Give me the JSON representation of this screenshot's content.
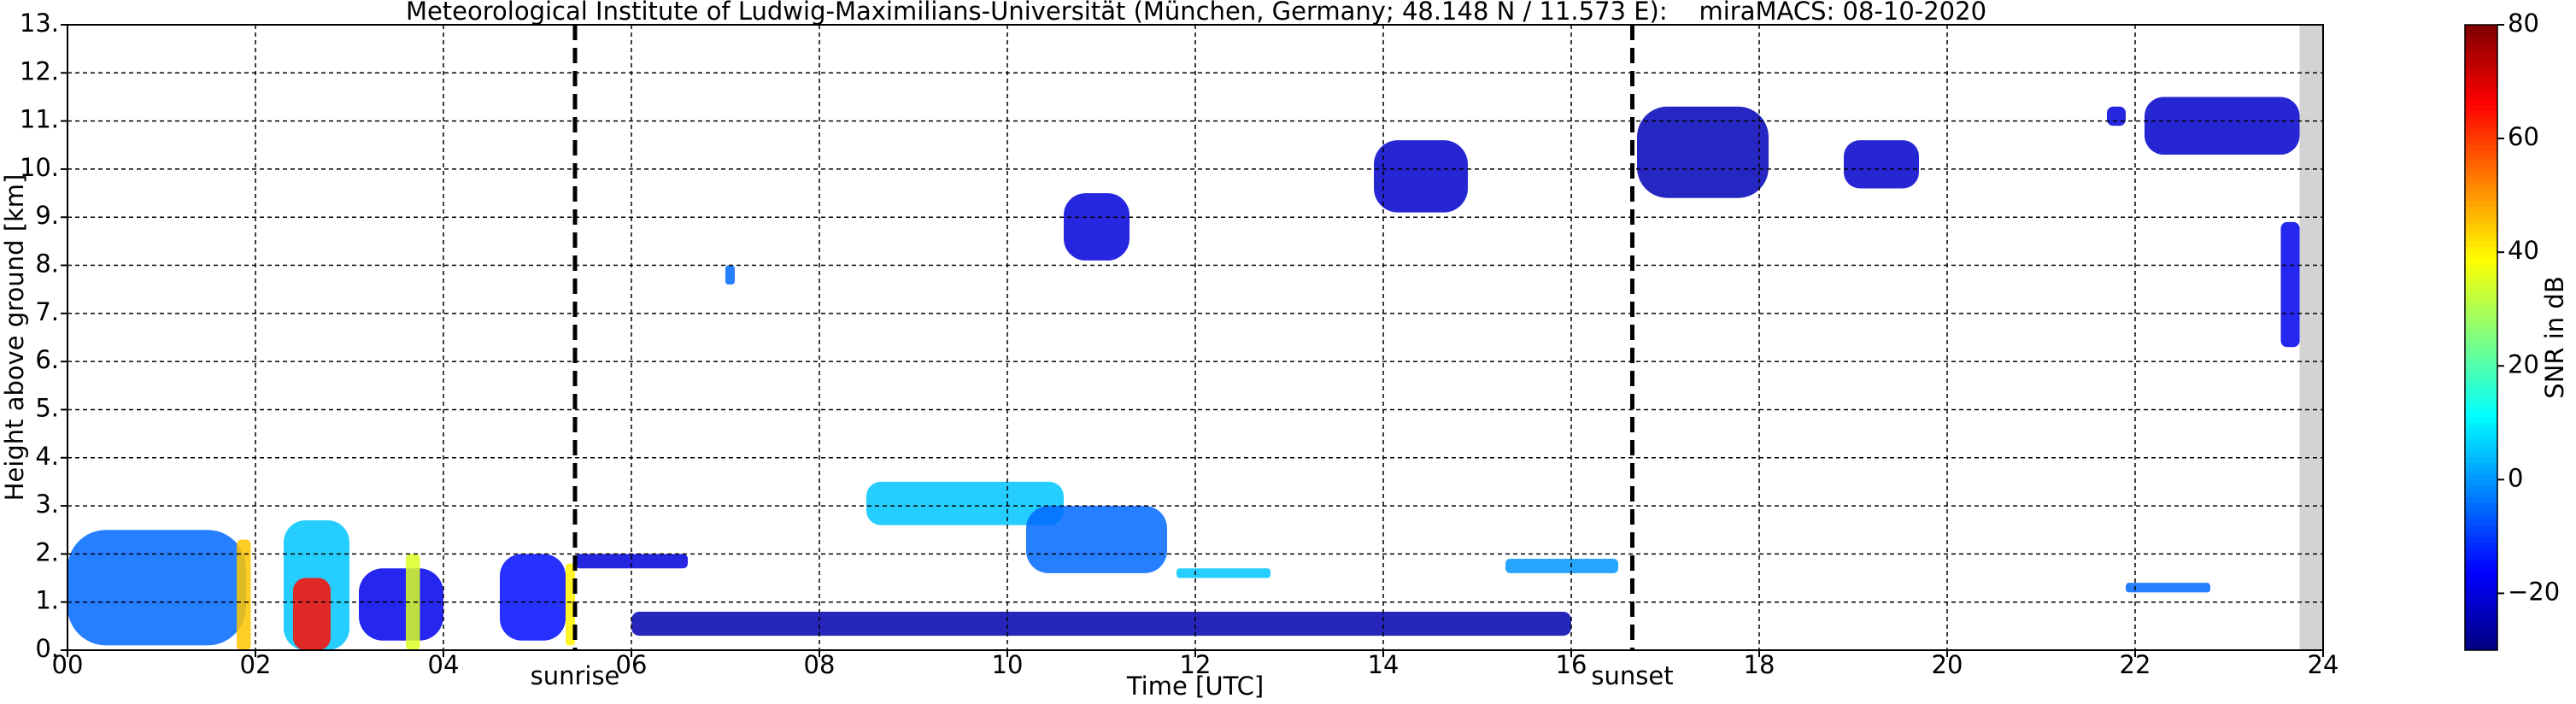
{
  "chart_data": {
    "type": "timeheight",
    "title": "Meteorological Institute of Ludwig-Maximilians-Universität (München, Germany; 48.148 N / 11.573 E):    miraMACS: 08-10-2020",
    "xlabel": "Time [UTC]",
    "ylabel": "Height above ground [km]",
    "colorbar_label": "SNR in dB",
    "xlim": [
      0,
      24
    ],
    "ylim": [
      0,
      13
    ],
    "clim": [
      -30,
      80
    ],
    "grid": true,
    "colormap": "jet",
    "xticks": [
      {
        "value": 0,
        "label": "00"
      },
      {
        "value": 2,
        "label": "02"
      },
      {
        "value": 4,
        "label": "04"
      },
      {
        "value": 6,
        "label": "06"
      },
      {
        "value": 8,
        "label": "08"
      },
      {
        "value": 10,
        "label": "10"
      },
      {
        "value": 12,
        "label": "12"
      },
      {
        "value": 14,
        "label": "14"
      },
      {
        "value": 16,
        "label": "16"
      },
      {
        "value": 18,
        "label": "18"
      },
      {
        "value": 20,
        "label": "20"
      },
      {
        "value": 22,
        "label": "22"
      },
      {
        "value": 24,
        "label": "24"
      }
    ],
    "yticks": [
      {
        "value": 0,
        "label": "0."
      },
      {
        "value": 1,
        "label": "1."
      },
      {
        "value": 2,
        "label": "2."
      },
      {
        "value": 3,
        "label": "3."
      },
      {
        "value": 4,
        "label": "4."
      },
      {
        "value": 5,
        "label": "5."
      },
      {
        "value": 6,
        "label": "6."
      },
      {
        "value": 7,
        "label": "7."
      },
      {
        "value": 8,
        "label": "8."
      },
      {
        "value": 9,
        "label": "9."
      },
      {
        "value": 10,
        "label": "10."
      },
      {
        "value": 11,
        "label": "11."
      },
      {
        "value": 12,
        "label": "12."
      },
      {
        "value": 13,
        "label": "13."
      }
    ],
    "cticks": [
      {
        "value": -20,
        "label": "−20"
      },
      0,
      20,
      40,
      60,
      80
    ],
    "markers": [
      {
        "x": 5.4,
        "label": "sunrise"
      },
      {
        "x": 16.65,
        "label": "sunset"
      }
    ],
    "no_data_x": [
      23.75,
      24
    ],
    "echoes": [
      {
        "x": [
          0.0,
          1.9
        ],
        "y": [
          0.1,
          2.5
        ],
        "snr": -5
      },
      {
        "x": [
          1.8,
          1.95
        ],
        "y": [
          0.0,
          2.3
        ],
        "snr": 45
      },
      {
        "x": [
          2.3,
          3.0
        ],
        "y": [
          0.0,
          2.7
        ],
        "snr": 5
      },
      {
        "x": [
          2.4,
          2.8
        ],
        "y": [
          0.0,
          1.5
        ],
        "snr": 65
      },
      {
        "x": [
          3.1,
          4.0
        ],
        "y": [
          0.2,
          1.7
        ],
        "snr": -18
      },
      {
        "x": [
          3.6,
          3.75
        ],
        "y": [
          0.0,
          2.0
        ],
        "snr": 35
      },
      {
        "x": [
          4.6,
          5.3
        ],
        "y": [
          0.2,
          2.0
        ],
        "snr": -15
      },
      {
        "x": [
          5.3,
          5.4
        ],
        "y": [
          0.1,
          1.8
        ],
        "snr": 40
      },
      {
        "x": [
          5.4,
          6.6
        ],
        "y": [
          1.7,
          2.0
        ],
        "snr": -20
      },
      {
        "x": [
          7.0,
          7.1
        ],
        "y": [
          7.6,
          8.0
        ],
        "snr": -5
      },
      {
        "x": [
          8.5,
          10.6
        ],
        "y": [
          2.6,
          3.5
        ],
        "snr": 5
      },
      {
        "x": [
          10.2,
          11.7
        ],
        "y": [
          1.6,
          3.0
        ],
        "snr": -5
      },
      {
        "x": [
          10.6,
          11.3
        ],
        "y": [
          8.1,
          9.5
        ],
        "snr": -20
      },
      {
        "x": [
          11.8,
          12.8
        ],
        "y": [
          1.5,
          1.7
        ],
        "snr": 5
      },
      {
        "x": [
          13.9,
          14.9
        ],
        "y": [
          9.1,
          10.6
        ],
        "snr": -22
      },
      {
        "x": [
          15.3,
          16.5
        ],
        "y": [
          1.6,
          1.9
        ],
        "snr": 0
      },
      {
        "x": [
          16.7,
          18.1
        ],
        "y": [
          9.4,
          11.3
        ],
        "snr": -24
      },
      {
        "x": [
          18.9,
          19.7
        ],
        "y": [
          9.6,
          10.6
        ],
        "snr": -22
      },
      {
        "x": [
          21.7,
          21.9
        ],
        "y": [
          10.9,
          11.3
        ],
        "snr": -20
      },
      {
        "x": [
          22.1,
          23.75
        ],
        "y": [
          10.3,
          11.5
        ],
        "snr": -22
      },
      {
        "x": [
          23.55,
          23.75
        ],
        "y": [
          6.3,
          8.9
        ],
        "snr": -18
      },
      {
        "x": [
          21.9,
          22.8
        ],
        "y": [
          1.2,
          1.4
        ],
        "snr": -5
      },
      {
        "x": [
          6.0,
          16.0
        ],
        "y": [
          0.3,
          0.8
        ],
        "snr": -25
      }
    ]
  }
}
